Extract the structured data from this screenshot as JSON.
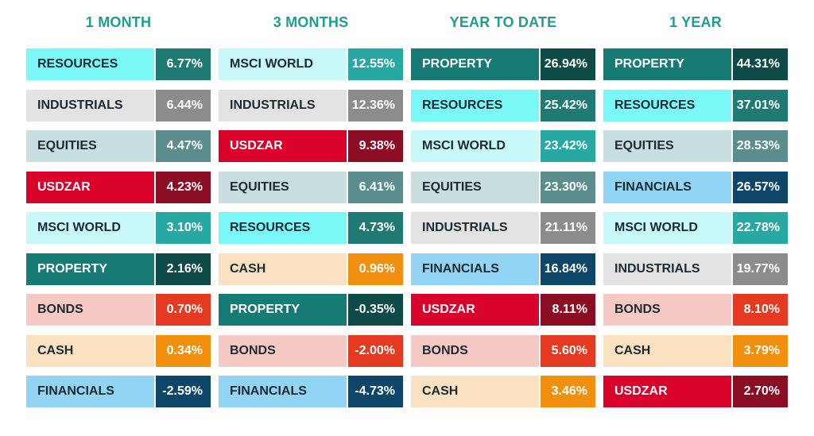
{
  "colors": {
    "heading": "#1f9d8f",
    "RESOURCES": {
      "label_bg": "#7af8f8",
      "value_bg": "#1e7a72",
      "label_fg": "#1c2b33"
    },
    "INDUSTRIALS": {
      "label_bg": "#e3e3e3",
      "value_bg": "#8c8c8c",
      "label_fg": "#1c2b33"
    },
    "EQUITIES": {
      "label_bg": "#c9dede",
      "value_bg": "#5b8d8d",
      "label_fg": "#1c2b33"
    },
    "USDZAR": {
      "label_bg": "#d9022b",
      "value_bg": "#8a0d24",
      "label_fg": "#ffffff"
    },
    "MSCI WORLD": {
      "label_bg": "#c8f8f8",
      "value_bg": "#27a8a3",
      "label_fg": "#1c2b33"
    },
    "PROPERTY": {
      "label_bg": "#167a75",
      "value_bg": "#0e4a47",
      "label_fg": "#ffffff"
    },
    "BONDS": {
      "label_bg": "#f6c9c4",
      "value_bg": "#e53a22",
      "label_fg": "#1c2b33"
    },
    "CASH": {
      "label_bg": "#fae1c2",
      "value_bg": "#f0900e",
      "label_fg": "#1c2b33"
    },
    "FINANCIALS": {
      "label_bg": "#91d4f4",
      "value_bg": "#0d4669",
      "label_fg": "#1c2b33"
    }
  },
  "chart_data": {
    "type": "table",
    "columns": [
      {
        "heading": "1 MONTH",
        "rows": [
          {
            "label": "RESOURCES",
            "value": "6.77%"
          },
          {
            "label": "INDUSTRIALS",
            "value": "6.44%"
          },
          {
            "label": "EQUITIES",
            "value": "4.47%"
          },
          {
            "label": "USDZAR",
            "value": "4.23%"
          },
          {
            "label": "MSCI WORLD",
            "value": "3.10%"
          },
          {
            "label": "PROPERTY",
            "value": "2.16%"
          },
          {
            "label": "BONDS",
            "value": "0.70%"
          },
          {
            "label": "CASH",
            "value": "0.34%"
          },
          {
            "label": "FINANCIALS",
            "value": "-2.59%"
          }
        ]
      },
      {
        "heading": "3 MONTHS",
        "rows": [
          {
            "label": "MSCI WORLD",
            "value": "12.55%"
          },
          {
            "label": "INDUSTRIALS",
            "value": "12.36%"
          },
          {
            "label": "USDZAR",
            "value": "9.38%"
          },
          {
            "label": "EQUITIES",
            "value": "6.41%"
          },
          {
            "label": "RESOURCES",
            "value": "4.73%"
          },
          {
            "label": "CASH",
            "value": "0.96%"
          },
          {
            "label": "PROPERTY",
            "value": "-0.35%"
          },
          {
            "label": "BONDS",
            "value": "-2.00%"
          },
          {
            "label": "FINANCIALS",
            "value": "-4.73%"
          }
        ]
      },
      {
        "heading": "YEAR TO DATE",
        "rows": [
          {
            "label": "PROPERTY",
            "value": "26.94%"
          },
          {
            "label": "RESOURCES",
            "value": "25.42%"
          },
          {
            "label": "MSCI WORLD",
            "value": "23.42%"
          },
          {
            "label": "EQUITIES",
            "value": "23.30%"
          },
          {
            "label": "INDUSTRIALS",
            "value": "21.11%"
          },
          {
            "label": "FINANCIALS",
            "value": "16.84%"
          },
          {
            "label": "USDZAR",
            "value": "8.11%"
          },
          {
            "label": "BONDS",
            "value": "5.60%"
          },
          {
            "label": "CASH",
            "value": "3.46%"
          }
        ]
      },
      {
        "heading": "1 YEAR",
        "rows": [
          {
            "label": "PROPERTY",
            "value": "44.31%"
          },
          {
            "label": "RESOURCES",
            "value": "37.01%"
          },
          {
            "label": "EQUITIES",
            "value": "28.53%"
          },
          {
            "label": "FINANCIALS",
            "value": "26.57%"
          },
          {
            "label": "MSCI WORLD",
            "value": "22.78%"
          },
          {
            "label": "INDUSTRIALS",
            "value": "19.77%"
          },
          {
            "label": "BONDS",
            "value": "8.10%"
          },
          {
            "label": "CASH",
            "value": "3.79%"
          },
          {
            "label": "USDZAR",
            "value": "2.70%"
          }
        ]
      }
    ]
  }
}
